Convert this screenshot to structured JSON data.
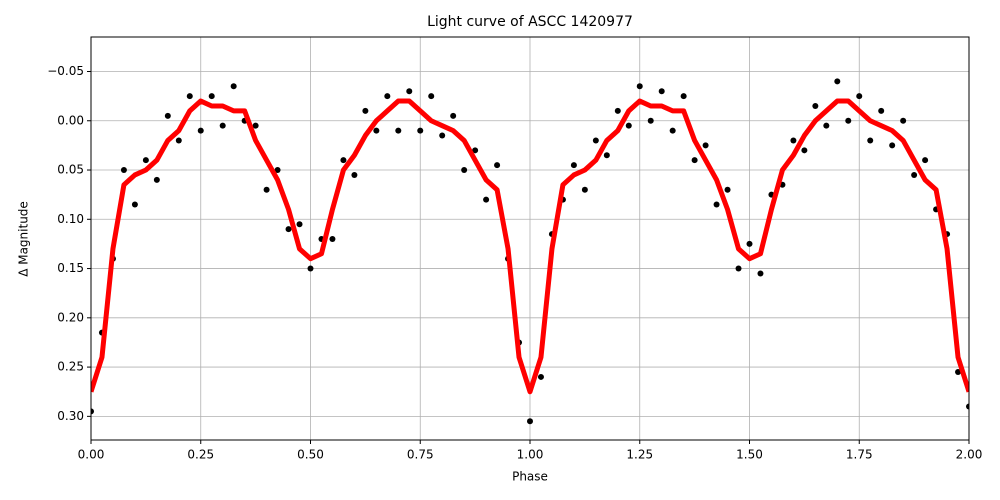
{
  "chart_data": {
    "type": "scatter",
    "title": "Light curve of ASCC 1420977",
    "x_label": "Phase",
    "y_label": "Δ Magnitude",
    "xlim": [
      0,
      2
    ],
    "ylim": [
      -0.085,
      0.324
    ],
    "invert_y": true,
    "grid": true,
    "xticks": [
      {
        "value": 0,
        "label": "0.00"
      },
      0.25,
      {
        "value": 0.5,
        "label": "0.50"
      },
      0.75,
      {
        "value": 1,
        "label": "1.00"
      },
      1.25,
      {
        "value": 1.5,
        "label": "1.50"
      },
      1.75,
      {
        "value": 2,
        "label": "2.00"
      }
    ],
    "yticks": [
      {
        "value": -0.05,
        "label": "−0.05"
      },
      {
        "value": 0,
        "label": "0.00"
      },
      0.05,
      {
        "value": 0.1,
        "label": "0.10"
      },
      0.15,
      {
        "value": 0.2,
        "label": "0.20"
      },
      0.25,
      {
        "value": 0.3,
        "label": "0.30"
      }
    ],
    "x": [
      0,
      0.025,
      0.05,
      0.075,
      0.1,
      0.125,
      0.15,
      0.175,
      0.2,
      0.225,
      0.25,
      0.275,
      0.3,
      0.325,
      0.35,
      0.375,
      0.4,
      0.425,
      0.45,
      0.475,
      0.5,
      0.525,
      0.55,
      0.575,
      0.6,
      0.625,
      0.65,
      0.675,
      0.7,
      0.725,
      0.75,
      0.775,
      0.8,
      0.825,
      0.85,
      0.875,
      0.9,
      0.925,
      0.95,
      0.975,
      1,
      1.025,
      1.05,
      1.075,
      1.1,
      1.125,
      1.15,
      1.175,
      1.2,
      1.225,
      1.25,
      1.275,
      1.3,
      1.325,
      1.35,
      1.375,
      1.4,
      1.425,
      1.45,
      1.475,
      1.5,
      1.525,
      1.55,
      1.575,
      1.6,
      1.625,
      1.65,
      1.675,
      1.7,
      1.725,
      1.75,
      1.775,
      1.8,
      1.825,
      1.85,
      1.875,
      1.9,
      1.925,
      1.95,
      1.975,
      2
    ],
    "points": {
      "color": "#000000",
      "values": [
        0.295,
        0.215,
        0.14,
        0.05,
        0.085,
        0.04,
        0.06,
        -0.005,
        0.02,
        -0.025,
        0.01,
        -0.025,
        0.005,
        -0.035,
        0.0,
        0.005,
        0.07,
        0.05,
        0.11,
        0.105,
        0.15,
        0.12,
        0.12,
        0.04,
        0.055,
        -0.01,
        0.01,
        -0.025,
        0.01,
        -0.03,
        0.01,
        -0.025,
        0.015,
        -0.005,
        0.05,
        0.03,
        0.08,
        0.045,
        0.14,
        0.225,
        0.305,
        0.26,
        0.115,
        0.08,
        0.045,
        0.07,
        0.02,
        0.035,
        -0.01,
        0.005,
        -0.035,
        0.0,
        -0.03,
        0.01,
        -0.025,
        0.04,
        0.025,
        0.085,
        0.07,
        0.15,
        0.125,
        0.155,
        0.075,
        0.065,
        0.02,
        0.03,
        -0.015,
        0.005,
        -0.04,
        0.0,
        -0.025,
        0.02,
        -0.01,
        0.025,
        0.0,
        0.055,
        0.04,
        0.09,
        0.115,
        0.255,
        0.29
      ]
    },
    "curve": {
      "color": "#ff0000",
      "values": [
        0.275,
        0.24,
        0.13,
        0.065,
        0.055,
        0.05,
        0.04,
        0.02,
        0.01,
        -0.01,
        -0.02,
        -0.015,
        -0.015,
        -0.01,
        -0.01,
        0.02,
        0.04,
        0.06,
        0.09,
        0.13,
        0.14,
        0.135,
        0.09,
        0.05,
        0.035,
        0.015,
        0.0,
        -0.01,
        -0.02,
        -0.02,
        -0.01,
        0.0,
        0.005,
        0.01,
        0.02,
        0.04,
        0.06,
        0.07,
        0.13,
        0.24,
        0.275,
        0.24,
        0.13,
        0.065,
        0.055,
        0.05,
        0.04,
        0.02,
        0.01,
        -0.01,
        -0.02,
        -0.015,
        -0.015,
        -0.01,
        -0.01,
        0.02,
        0.04,
        0.06,
        0.09,
        0.13,
        0.14,
        0.135,
        0.09,
        0.05,
        0.035,
        0.015,
        0.0,
        -0.01,
        -0.02,
        -0.02,
        -0.01,
        0.0,
        0.005,
        0.01,
        0.02,
        0.04,
        0.06,
        0.07,
        0.13,
        0.24,
        0.275
      ]
    }
  }
}
